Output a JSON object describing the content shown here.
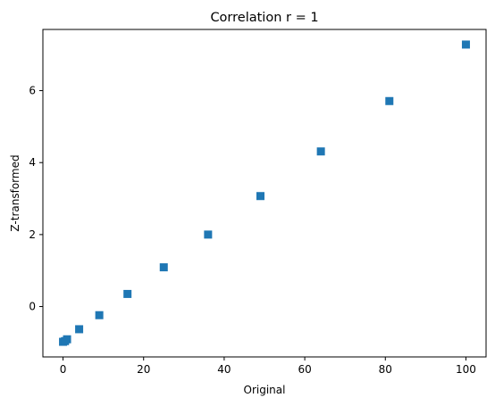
{
  "chart_data": {
    "type": "scatter",
    "title": "Correlation r = 1",
    "xlabel": "Original",
    "ylabel": "Z-transformed",
    "xlim": [
      -5,
      105
    ],
    "ylim": [
      -1.4,
      7.7
    ],
    "xticks": [
      0,
      20,
      40,
      60,
      80,
      100
    ],
    "yticks": [
      0,
      2,
      4,
      6
    ],
    "x_tick_labels": [
      "0",
      "20",
      "40",
      "60",
      "80",
      "100"
    ],
    "y_tick_labels": [
      "0",
      "2",
      "4",
      "6"
    ],
    "marker": "square",
    "grid": false,
    "legend": false,
    "color": "#1f77b4",
    "points": [
      {
        "x": 0,
        "y": -0.98
      },
      {
        "x": 0.5,
        "y": -0.96
      },
      {
        "x": 1,
        "y": -0.91
      },
      {
        "x": 4,
        "y": -0.63
      },
      {
        "x": 9,
        "y": -0.24
      },
      {
        "x": 16,
        "y": 0.35
      },
      {
        "x": 25,
        "y": 1.09
      },
      {
        "x": 36,
        "y": 2.0
      },
      {
        "x": 49,
        "y": 3.07
      },
      {
        "x": 64,
        "y": 4.31
      },
      {
        "x": 81,
        "y": 5.71
      },
      {
        "x": 100,
        "y": 7.28
      }
    ]
  }
}
